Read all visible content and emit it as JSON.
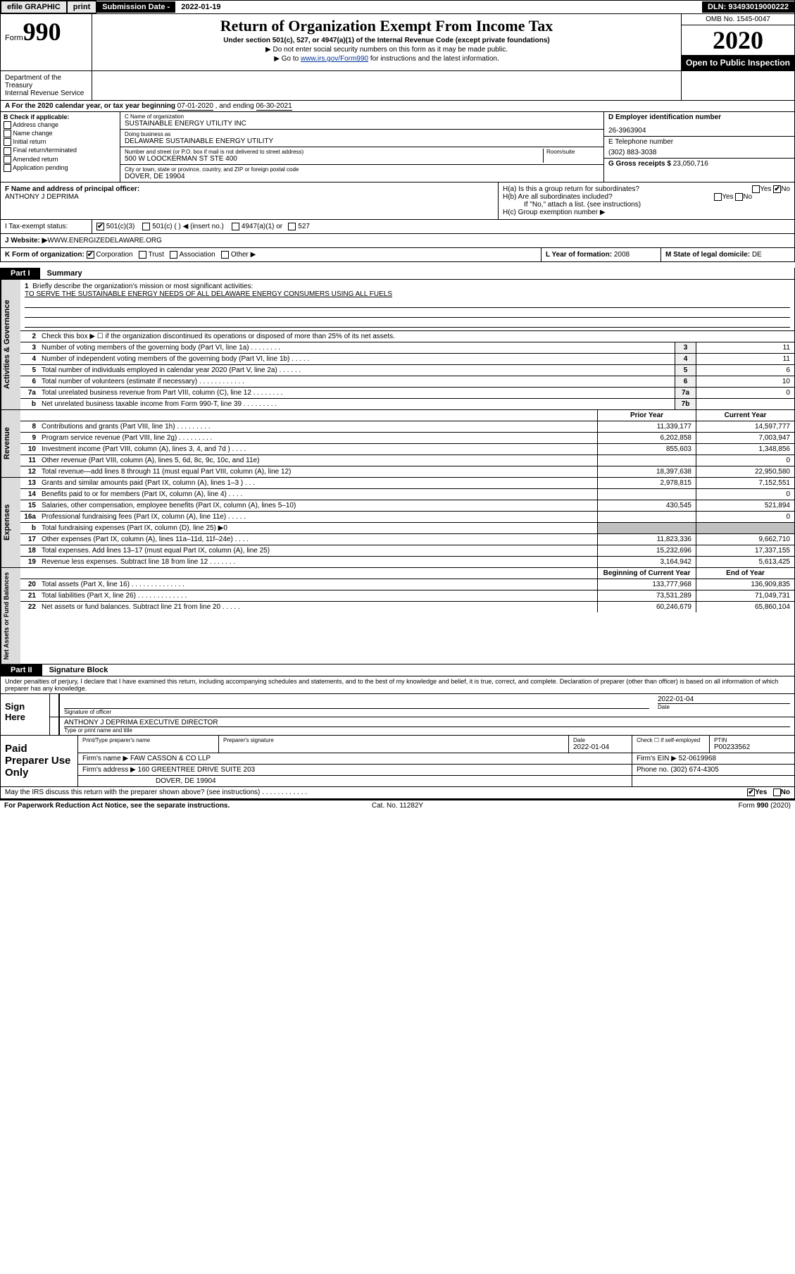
{
  "topbar": {
    "efile": "efile GRAPHIC",
    "print": "print",
    "sub_label": "Submission Date - ",
    "sub_date": "2022-01-19",
    "dln": "DLN: 93493019000222"
  },
  "header": {
    "form_word": "Form",
    "form_num": "990",
    "title": "Return of Organization Exempt From Income Tax",
    "subtitle": "Under section 501(c), 527, or 4947(a)(1) of the Internal Revenue Code (except private foundations)",
    "note1": "▶ Do not enter social security numbers on this form as it may be made public.",
    "note2_pre": "▶ Go to ",
    "note2_link": "www.irs.gov/Form990",
    "note2_post": " for instructions and the latest information.",
    "omb": "OMB No. 1545-0047",
    "year": "2020",
    "open": "Open to Public Inspection",
    "dept": "Department of the Treasury",
    "irs": "Internal Revenue Service"
  },
  "period": {
    "text_a": "A For the 2020 calendar year, or tax year beginning ",
    "begin": "07-01-2020",
    "text_b": " , and ending ",
    "end": "06-30-2021"
  },
  "checkcol": {
    "hdr": "B Check if applicable:",
    "items": [
      "Address change",
      "Name change",
      "Initial return",
      "Final return/terminated",
      "Amended return",
      "Application pending"
    ]
  },
  "namecol": {
    "c_lbl": "C Name of organization",
    "c_val": "SUSTAINABLE ENERGY UTILITY INC",
    "dba_lbl": "Doing business as",
    "dba_val": "DELAWARE SUSTAINABLE ENERGY UTILITY",
    "addr_lbl": "Number and street (or P.O. box if mail is not delivered to street address)",
    "room_lbl": "Room/suite",
    "addr_val": "500 W LOOCKERMAN ST STE 400",
    "city_lbl": "City or town, state or province, country, and ZIP or foreign postal code",
    "city_val": "DOVER, DE  19904"
  },
  "idcol": {
    "d_lbl": "D Employer identification number",
    "d_val": "26-3963904",
    "e_lbl": "E Telephone number",
    "e_val": "(302) 883-3038",
    "g_lbl": "G Gross receipts $ ",
    "g_val": "23,050,716"
  },
  "officer": {
    "f_lbl": "F  Name and address of principal officer:",
    "f_val": "ANTHONY J DEPRIMA",
    "ha": "H(a)  Is this a group return for subordinates?",
    "hb": "H(b)  Are all subordinates included?",
    "hb_note": "If \"No,\" attach a list. (see instructions)",
    "hc": "H(c)  Group exemption number ▶",
    "yes": "Yes",
    "no": "No"
  },
  "exempt": {
    "i_lbl": "I  Tax-exempt status:",
    "opt1": "501(c)(3)",
    "opt2": "501(c) (   ) ◀ (insert no.)",
    "opt3": "4947(a)(1) or",
    "opt4": "527"
  },
  "website": {
    "j_lbl": "J  Website: ▶",
    "j_val": " WWW.ENERGIZEDELAWARE.ORG"
  },
  "korg": {
    "k_lbl": "K Form of organization:",
    "corp": "Corporation",
    "trust": "Trust",
    "assoc": "Association",
    "other": "Other ▶",
    "l_lbl": "L Year of formation: ",
    "l_val": "2008",
    "m_lbl": "M State of legal domicile: ",
    "m_val": "DE"
  },
  "part1": {
    "tab": "Part I",
    "label": "Summary"
  },
  "gov": {
    "side": "Activities & Governance",
    "l1_lbl": "Briefly describe the organization's mission or most significant activities:",
    "l1_val": "TO SERVE THE SUSTAINABLE ENERGY NEEDS OF ALL DELAWARE ENERGY CONSUMERS USING ALL FUELS",
    "l2": "Check this box ▶ ☐  if the organization discontinued its operations or disposed of more than 25% of its net assets.",
    "rows": [
      {
        "n": "3",
        "d": "Number of voting members of the governing body (Part VI, line 1a)   .    .    .    .    .    .    .    .",
        "b": "3",
        "v": "11"
      },
      {
        "n": "4",
        "d": "Number of independent voting members of the governing body (Part VI, line 1b)   .    .    .    .    .",
        "b": "4",
        "v": "11"
      },
      {
        "n": "5",
        "d": "Total number of individuals employed in calendar year 2020 (Part V, line 2a)   .    .    .    .    .    .",
        "b": "5",
        "v": "6"
      },
      {
        "n": "6",
        "d": "Total number of volunteers (estimate if necessary)   .    .    .    .    .    .    .    .    .    .    .    .",
        "b": "6",
        "v": "10"
      },
      {
        "n": "7a",
        "d": "Total unrelated business revenue from Part VIII, column (C), line 12  .    .    .    .    .    .    .    .",
        "b": "7a",
        "v": "0"
      },
      {
        "n": "b",
        "d": "Net unrelated business taxable income from Form 990-T, line 39  .    .    .    .    .    .    .    .    .",
        "b": "7b",
        "v": ""
      }
    ]
  },
  "rev": {
    "side": "Revenue",
    "hdr_prior": "Prior Year",
    "hdr_curr": "Current Year",
    "rows": [
      {
        "n": "8",
        "d": "Contributions and grants (Part VIII, line 1h)   .    .    .    .    .    .    .    .    .",
        "p": "11,339,177",
        "c": "14,597,777"
      },
      {
        "n": "9",
        "d": "Program service revenue (Part VIII, line 2g)  .    .    .    .    .    .    .    .    .",
        "p": "6,202,858",
        "c": "7,003,947"
      },
      {
        "n": "10",
        "d": "Investment income (Part VIII, column (A), lines 3, 4, and 7d )   .    .    .    .",
        "p": "855,603",
        "c": "1,348,856"
      },
      {
        "n": "11",
        "d": "Other revenue (Part VIII, column (A), lines 5, 6d, 8c, 9c, 10c, and 11e)",
        "p": "",
        "c": "0"
      },
      {
        "n": "12",
        "d": "Total revenue—add lines 8 through 11 (must equal Part VIII, column (A), line 12)",
        "p": "18,397,638",
        "c": "22,950,580"
      }
    ]
  },
  "exp": {
    "side": "Expenses",
    "rows": [
      {
        "n": "13",
        "d": "Grants and similar amounts paid (Part IX, column (A), lines 1–3 )   .    .    .",
        "p": "2,978,815",
        "c": "7,152,551"
      },
      {
        "n": "14",
        "d": "Benefits paid to or for members (Part IX, column (A), line 4)   .    .    .    .",
        "p": "",
        "c": "0"
      },
      {
        "n": "15",
        "d": "Salaries, other compensation, employee benefits (Part IX, column (A), lines 5–10)",
        "p": "430,545",
        "c": "521,894"
      },
      {
        "n": "16a",
        "d": "Professional fundraising fees (Part IX, column (A), line 11e)   .    .    .    .    .",
        "p": "",
        "c": "0"
      },
      {
        "n": "b",
        "d": "Total fundraising expenses (Part IX, column (D), line 25) ▶0",
        "p": "GREY",
        "c": "GREY"
      },
      {
        "n": "17",
        "d": "Other expenses (Part IX, column (A), lines 11a–11d, 11f–24e)   .    .    .    .",
        "p": "11,823,336",
        "c": "9,662,710"
      },
      {
        "n": "18",
        "d": "Total expenses. Add lines 13–17 (must equal Part IX, column (A), line 25)",
        "p": "15,232,696",
        "c": "17,337,155"
      },
      {
        "n": "19",
        "d": "Revenue less expenses. Subtract line 18 from line 12  .    .    .    .    .    .    .",
        "p": "3,164,942",
        "c": "5,613,425"
      }
    ]
  },
  "net": {
    "side": "Net Assets or Fund Balances",
    "hdr_begin": "Beginning of Current Year",
    "hdr_end": "End of Year",
    "rows": [
      {
        "n": "20",
        "d": "Total assets (Part X, line 16)   .    .    .    .    .    .    .    .    .    .    .    .    .    .",
        "p": "133,777,968",
        "c": "136,909,835"
      },
      {
        "n": "21",
        "d": "Total liabilities (Part X, line 26)   .    .    .    .    .    .    .    .    .    .    .    .    .",
        "p": "73,531,289",
        "c": "71,049,731"
      },
      {
        "n": "22",
        "d": "Net assets or fund balances. Subtract line 21 from line 20   .    .    .    .    .",
        "p": "60,246,679",
        "c": "65,860,104"
      }
    ]
  },
  "part2": {
    "tab": "Part II",
    "label": "Signature Block"
  },
  "perjury": "Under penalties of perjury, I declare that I have examined this return, including accompanying schedules and statements, and to the best of my knowledge and belief, it is true, correct, and complete. Declaration of preparer (other than officer) is based on all information of which preparer has any knowledge.",
  "sign": {
    "left": "Sign Here",
    "sig_of": "Signature of officer",
    "date_lbl": "Date",
    "date_val": "2022-01-04",
    "name": "ANTHONY J DEPRIMA  EXECUTIVE DIRECTOR",
    "name_lbl": "Type or print name and title"
  },
  "prep": {
    "left": "Paid Preparer Use Only",
    "r1": {
      "c1": "Print/Type preparer's name",
      "c2": "Preparer's signature",
      "c3": "Date",
      "c3v": "2022-01-04",
      "c4": "Check ☐ if self-employed",
      "c5": "PTIN",
      "c5v": "P00233562"
    },
    "r2": {
      "lbl": "Firm's name    ▶ ",
      "val": "FAW CASSON & CO LLP",
      "ein_lbl": "Firm's EIN ▶ ",
      "ein": "52-0619968"
    },
    "r3": {
      "lbl": "Firm's address ▶ ",
      "val": "160 GREENTREE DRIVE SUITE 203",
      "ph_lbl": "Phone no. ",
      "ph": "(302) 674-4305"
    },
    "r4": {
      "val": "DOVER, DE  19904"
    }
  },
  "discuss": {
    "text": "May the IRS discuss this return with the preparer shown above? (see instructions)   .    .    .    .    .    .    .    .    .    .    .    .",
    "yes": "Yes",
    "no": "No"
  },
  "footer": {
    "l": "For Paperwork Reduction Act Notice, see the separate instructions.",
    "c": "Cat. No. 11282Y",
    "r": "Form 990 (2020)"
  }
}
